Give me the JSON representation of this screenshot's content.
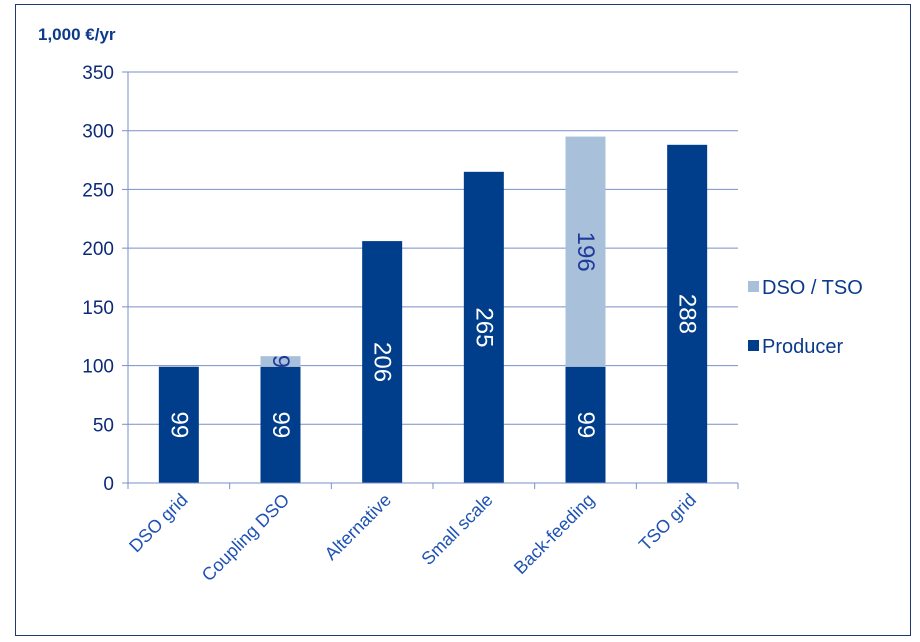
{
  "chart_data": {
    "type": "bar",
    "stacked": true,
    "ylabel": "1,000 €/yr",
    "ylim": [
      0,
      350
    ],
    "yticks": [
      0,
      50,
      100,
      150,
      200,
      250,
      300,
      350
    ],
    "grid": true,
    "legend_position": "right",
    "categories": [
      "DSO grid",
      "Coupling DSO",
      "Alternative",
      "Small scale",
      "Back-feeding",
      "TSO grid"
    ],
    "series": [
      {
        "name": "Producer",
        "color": "#003e8c",
        "values": [
          99,
          99,
          206,
          265,
          99,
          288
        ]
      },
      {
        "name": "DSO / TSO",
        "color": "#a8c0d9",
        "values": [
          0,
          9,
          0,
          0,
          196,
          0
        ]
      }
    ]
  }
}
